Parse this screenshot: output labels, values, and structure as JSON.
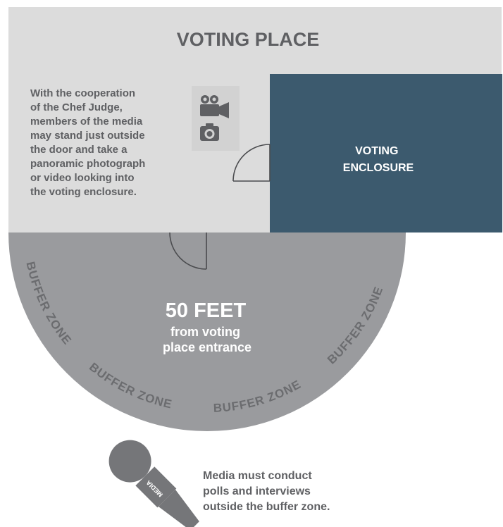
{
  "voting_place": {
    "title": "VOTING PLACE",
    "note_lines": [
      "With the cooperation",
      "of the Chef Judge,",
      "members of the media",
      "may stand just outside",
      "the door and take a",
      "panoramic photograph",
      "or video looking into",
      "the voting enclosure."
    ]
  },
  "enclosure": {
    "label_lines": [
      "VOTING",
      "ENCLOSURE"
    ]
  },
  "buffer": {
    "distance": "50 FEET",
    "sub_lines": [
      "from voting",
      "place entrance"
    ],
    "zone_label": "BUFFER ZONE"
  },
  "media": {
    "mic_label": "MEDIA",
    "note_lines": [
      "Media must conduct",
      "polls and interviews",
      "outside the buffer zone."
    ]
  },
  "icons": [
    "video-camera-icon",
    "photo-camera-icon",
    "microphone-icon"
  ],
  "colors": {
    "place_bg": "#dcdcdc",
    "buffer": "#9a9b9e",
    "enclosure": "#3c5a6e",
    "text_dark": "#5f6063",
    "text_light": "#ffffff",
    "zone_text": "#6b6c6f"
  }
}
